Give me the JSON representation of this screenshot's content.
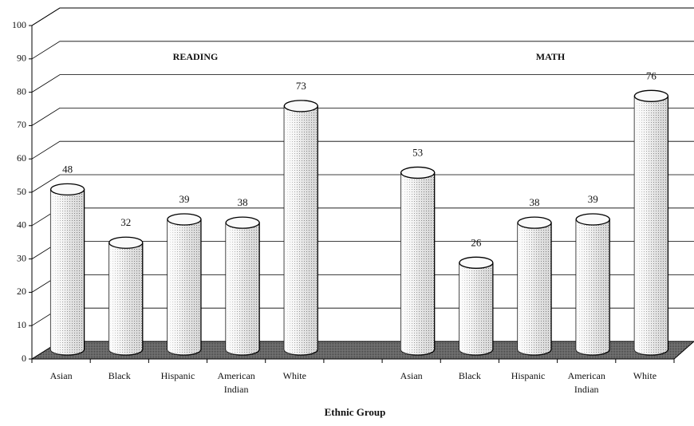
{
  "chart_data": {
    "type": "bar",
    "annotations": [
      "READING",
      "MATH"
    ],
    "x_label": "Ethnic Group",
    "categories": [
      "Asian",
      "Black",
      "Hispanic",
      "American Indian",
      "White",
      null,
      "Asian",
      "Black",
      "Hispanic",
      "American Indian",
      "White"
    ],
    "values": [
      48,
      32,
      39,
      38,
      73,
      null,
      53,
      26,
      38,
      39,
      76
    ],
    "color": "#e4e4e4",
    "ylim": [
      0,
      100
    ],
    "yticks": [
      0,
      10,
      20,
      30,
      40,
      50,
      60,
      70,
      80,
      90,
      100
    ],
    "grid": true
  }
}
